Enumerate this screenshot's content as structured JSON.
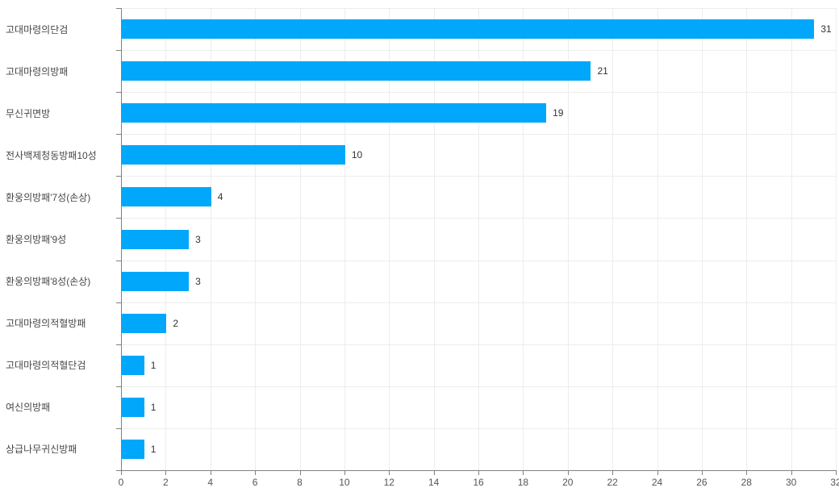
{
  "chart_data": {
    "type": "bar",
    "orientation": "horizontal",
    "title": "",
    "xlabel": "",
    "ylabel": "",
    "categories": [
      "고대마령의단검",
      "고대마령의방패",
      "무신귀면방",
      "전사백제청동방패10성",
      "환웅의방패'7성(손상)",
      "환웅의방패'9성",
      "환웅의방패'8성(손상)",
      "고대마령의적혈방패",
      "고대마령의적혈단검",
      "여신의방패",
      "상급나무귀신방패"
    ],
    "values": [
      31,
      21,
      19,
      10,
      4,
      3,
      3,
      2,
      1,
      1,
      1
    ],
    "value_labels": [
      "31",
      "21",
      "19",
      "10",
      "4",
      "3",
      "3",
      "2",
      "1",
      "1",
      "1"
    ],
    "xlim": [
      0,
      32
    ],
    "xticks": [
      0,
      2,
      4,
      6,
      8,
      10,
      12,
      14,
      16,
      18,
      20,
      22,
      24,
      26,
      28,
      30,
      32
    ],
    "grid": true,
    "legend": false
  },
  "colors": {
    "bar": "#00a7fa",
    "grid": "#ededed",
    "axis": "#808080",
    "value_text": "#333333",
    "category_text": "#474747",
    "tick_text": "#555555",
    "background": "#ffffff"
  }
}
